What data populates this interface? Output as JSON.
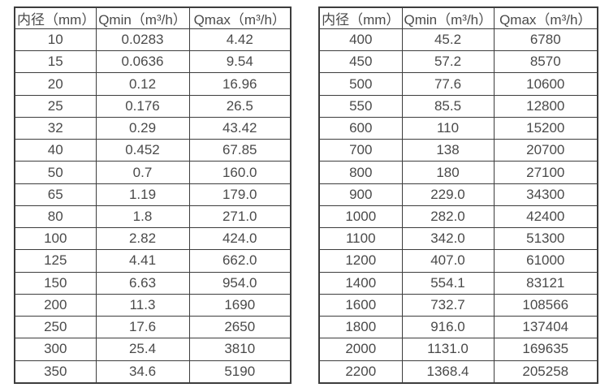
{
  "colors": {
    "background": "#ffffff",
    "text": "#4a4a4a",
    "border": "#3d3d3d"
  },
  "tables": [
    {
      "name": "small-diameter-flow-table",
      "headers": [
        "内径（mm）",
        "Qmin（m³/h）",
        "Qmax（m³/h）"
      ],
      "rows": [
        [
          "10",
          "0.0283",
          "4.42"
        ],
        [
          "15",
          "0.0636",
          "9.54"
        ],
        [
          "20",
          "0.12",
          "16.96"
        ],
        [
          "25",
          "0.176",
          "26.5"
        ],
        [
          "32",
          "0.29",
          "43.42"
        ],
        [
          "40",
          "0.452",
          "67.85"
        ],
        [
          "50",
          "0.7",
          "160.0"
        ],
        [
          "65",
          "1.19",
          "179.0"
        ],
        [
          "80",
          "1.8",
          "271.0"
        ],
        [
          "100",
          "2.82",
          "424.0"
        ],
        [
          "125",
          "4.41",
          "662.0"
        ],
        [
          "150",
          "6.63",
          "954.0"
        ],
        [
          "200",
          "11.3",
          "1690"
        ],
        [
          "250",
          "17.6",
          "2650"
        ],
        [
          "300",
          "25.4",
          "3810"
        ],
        [
          "350",
          "34.6",
          "5190"
        ]
      ]
    },
    {
      "name": "large-diameter-flow-table",
      "headers": [
        "内径（mm）",
        "Qmin（m³/h）",
        "Qmax（m³/h）"
      ],
      "rows": [
        [
          "400",
          "45.2",
          "6780"
        ],
        [
          "450",
          "57.2",
          "8570"
        ],
        [
          "500",
          "77.6",
          "10600"
        ],
        [
          "550",
          "85.5",
          "12800"
        ],
        [
          "600",
          "110",
          "15200"
        ],
        [
          "700",
          "138",
          "20700"
        ],
        [
          "800",
          "180",
          "27100"
        ],
        [
          "900",
          "229.0",
          "34300"
        ],
        [
          "1000",
          "282.0",
          "42400"
        ],
        [
          "1100",
          "342.0",
          "51300"
        ],
        [
          "1200",
          "407.0",
          "61000"
        ],
        [
          "1400",
          "554.1",
          "83121"
        ],
        [
          "1600",
          "732.7",
          "108566"
        ],
        [
          "1800",
          "916.0",
          "137404"
        ],
        [
          "2000",
          "1131.0",
          "169635"
        ],
        [
          "2200",
          "1368.4",
          "205258"
        ]
      ]
    }
  ]
}
